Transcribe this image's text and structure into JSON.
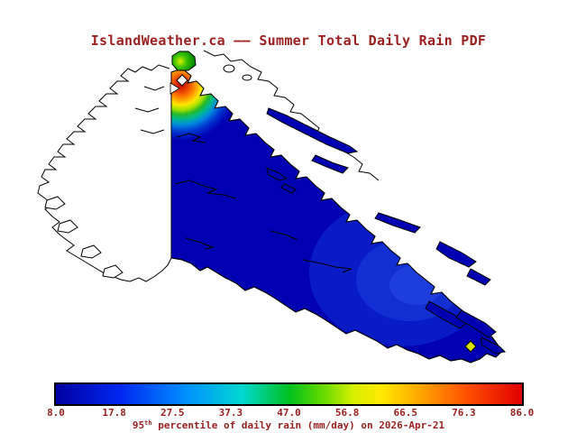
{
  "title": "IslandWeather.ca —— Summer Total Daily Rain PDF",
  "caption": {
    "number": "95",
    "ordinal": "th",
    "text": " percentile of daily rain (mm/day) on 2026-Apr-21"
  },
  "colorbar": {
    "ticks": [
      "8.0",
      "17.8",
      "27.5",
      "37.3",
      "47.0",
      "56.8",
      "66.5",
      "76.3",
      "86.0"
    ],
    "min": 8.0,
    "max": 86.0,
    "units": "mm/day",
    "gradient": [
      "#0000a0 0%",
      "#0028f0 14%",
      "#0090ff 28%",
      "#00d8d0 40%",
      "#00c020 50%",
      "#60d800 57%",
      "#d8f000 64%",
      "#ffe800 70%",
      "#ffa800 78%",
      "#ff5000 88%",
      "#e00000 100%"
    ]
  },
  "colors": {
    "text": "#9b2121",
    "island_fill": "#0000b2",
    "coastline": "#000000",
    "hotspot_core": "#c80000",
    "station_marker": "#d8e000",
    "background": "#ffffff"
  },
  "chart_data": {
    "type": "heatmap",
    "title": "IslandWeather.ca —— Summer Total Daily Rain PDF",
    "variable": "95th percentile of daily rain",
    "units": "mm/day",
    "date": "2026-Apr-21",
    "region": "Vancouver Island and Strait of Georgia, British Columbia",
    "colormap": "rainbow (dark blue to red)",
    "colorbar_ticks": [
      8.0,
      17.8,
      27.5,
      37.3,
      47.0,
      56.8,
      66.5,
      76.3,
      86.0
    ],
    "value_range": [
      8.0,
      86.0
    ],
    "field_summary": [
      {
        "area": "most of Vancouver Island and strait islands",
        "approx_value_mm_day": "8-20",
        "color": "dark blue"
      },
      {
        "area": "southeast interior of the island",
        "approx_value_mm_day": "15-25",
        "color": "slightly lighter blue"
      },
      {
        "area": "northwest coastal hotspot at data boundary",
        "approx_value_mm_day": "up to ~86",
        "color": "red core ringed by orange, yellow, green, cyan"
      },
      {
        "area": "small patch just north of the hotspot",
        "approx_value_mm_day": "45-55",
        "color": "green"
      },
      {
        "area": "station marker near southeast tip (Victoria)",
        "approx_value_mm_day": "~60",
        "color": "yellow diamond"
      }
    ]
  }
}
